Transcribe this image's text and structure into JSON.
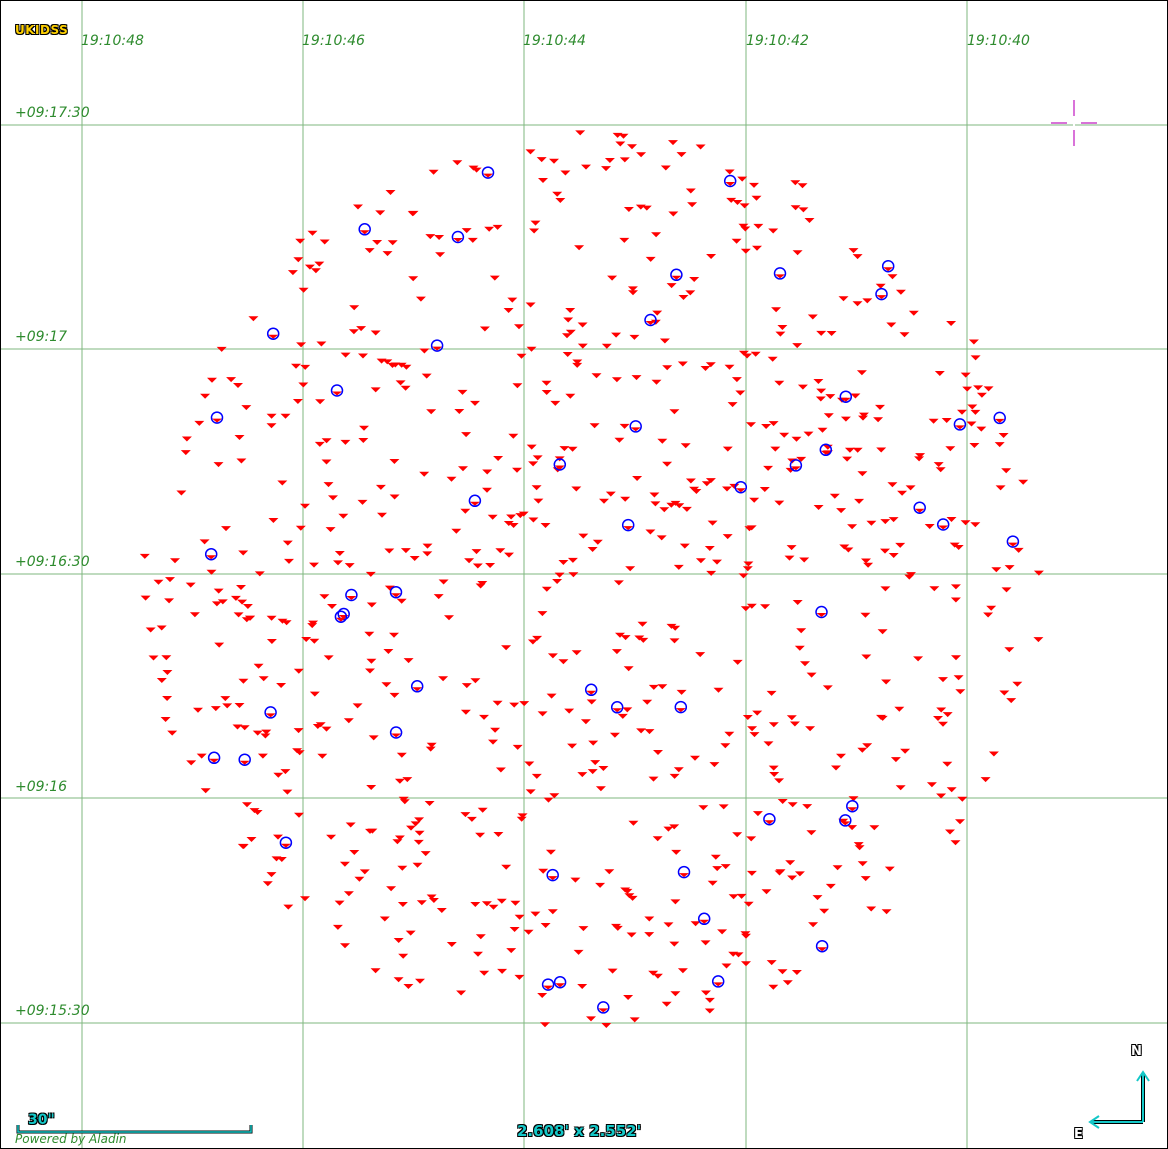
{
  "survey": "UKIDSS",
  "ra_labels": [
    "19:10:48",
    "19:10:46",
    "19:10:44",
    "19:10:42",
    "19:10:40"
  ],
  "dec_labels": [
    "+09:17:30",
    "+09:17",
    "+09:16:30",
    "+09:16",
    "+09:15:30"
  ],
  "scale_bar": "30\"",
  "field_of_view": "2.608' x 2.552'",
  "credit": "Powered by Aladin",
  "compass": {
    "north": "N",
    "east": "E"
  },
  "colors": {
    "grid": "#7fb77f",
    "label": "#2e8b2e",
    "source_marker": "#ff0000",
    "highlight_circle": "#0000ff",
    "cursor": "#cc44cc",
    "overlay_text": "#14c8c8"
  },
  "markers": {
    "source_shape": "red-triangle-down",
    "highlight_shape": "blue-circle",
    "highlighted_sources": 52,
    "region_shape": "circular field of catalogue sources"
  }
}
